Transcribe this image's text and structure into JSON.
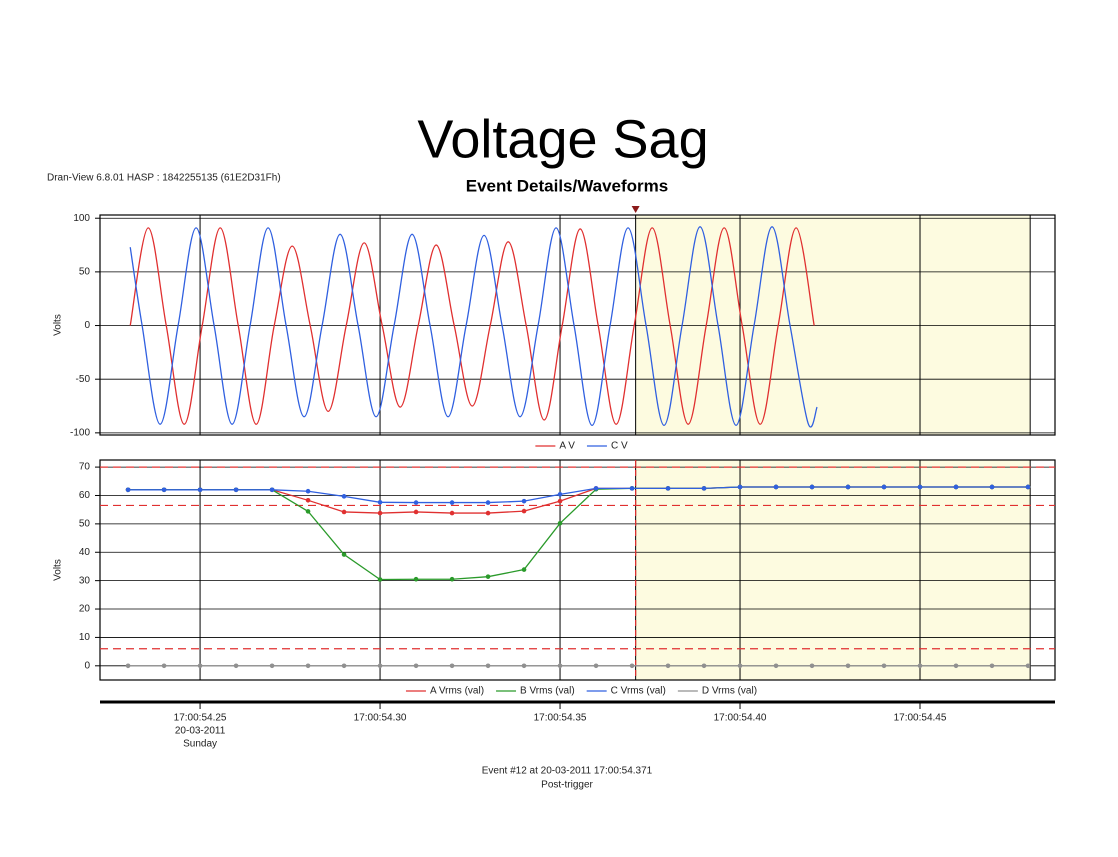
{
  "title": "Voltage Sag",
  "header": "Dran-View 6.8.01 HASP : 1842255135 (61E2D31Fh)",
  "subtitle": "Event Details/Waveforms",
  "footer": {
    "event": "Event #12 at 20-03-2011 17:00:54.371",
    "status": "Post-trigger"
  },
  "chart_data": [
    {
      "type": "line",
      "smooth": true,
      "ylabel": "Volts",
      "xlim": [
        54.2222,
        54.4875
      ],
      "ylim": [
        -102,
        103
      ],
      "yticks": [
        -100,
        -50,
        0,
        50,
        100
      ],
      "grid": true,
      "shaded_xrange": [
        54.371,
        54.4806
      ],
      "trigger_x": 54.371,
      "series": [
        {
          "name": "A V",
          "color": "#e03030",
          "x": [
            54.2306,
            54.2356,
            54.2406,
            54.2456,
            54.2506,
            54.2556,
            54.2606,
            54.2656,
            54.2706,
            54.2756,
            54.2806,
            54.2856,
            54.2906,
            54.2956,
            54.3006,
            54.3056,
            54.3106,
            54.3156,
            54.3206,
            54.3256,
            54.3306,
            54.3356,
            54.3406,
            54.3456,
            54.3506,
            54.3556,
            54.3606,
            54.3656,
            54.3706,
            54.3756,
            54.3806,
            54.3856,
            54.3906,
            54.3956,
            54.4006,
            54.4056,
            54.4106,
            54.4156,
            54.4206
          ],
          "values": [
            0,
            91,
            0,
            -92,
            0,
            91,
            0,
            -92,
            0,
            74,
            0,
            -80,
            0,
            77,
            0,
            -76,
            0,
            75,
            0,
            -75,
            0,
            78,
            0,
            -88,
            0,
            90,
            0,
            -92,
            0,
            91,
            0,
            -92,
            0,
            91,
            0,
            -92,
            0,
            91,
            0
          ]
        },
        {
          "name": "C V",
          "color": "#3060e0",
          "x": [
            54.2306,
            54.2339,
            54.2389,
            54.2439,
            54.2489,
            54.2539,
            54.2589,
            54.2639,
            54.2689,
            54.2739,
            54.2789,
            54.2839,
            54.2889,
            54.2939,
            54.2989,
            54.3039,
            54.3089,
            54.3139,
            54.3189,
            54.3239,
            54.3289,
            54.3339,
            54.3389,
            54.3439,
            54.3489,
            54.3539,
            54.3589,
            54.3639,
            54.3689,
            54.3739,
            54.3789,
            54.3839,
            54.3889,
            54.3939,
            54.3989,
            54.4039,
            54.4089,
            54.4139,
            54.4189,
            54.4214
          ],
          "values": [
            73,
            0,
            -92,
            0,
            91,
            0,
            -92,
            0,
            91,
            0,
            -85,
            0,
            85,
            0,
            -85,
            0,
            85,
            0,
            -85,
            0,
            84,
            0,
            -85,
            0,
            91,
            0,
            -93,
            0,
            91,
            0,
            -93,
            0,
            92,
            0,
            -93,
            0,
            92,
            0,
            -91,
            -76
          ]
        }
      ]
    },
    {
      "type": "line",
      "smooth": false,
      "markers": true,
      "ylabel": "Volts",
      "xlim": [
        54.2222,
        54.4875
      ],
      "ylim": [
        -5,
        72.5
      ],
      "yticks": [
        0,
        10,
        20,
        30,
        40,
        50,
        60,
        70
      ],
      "grid": true,
      "shaded_xrange": [
        54.371,
        54.4806
      ],
      "trigger_x": 54.371,
      "limit_lines": [
        70,
        56.5,
        6
      ],
      "limit_color": "#e03030",
      "xticks": [
        {
          "value": 54.25,
          "label": "17:00:54.25"
        },
        {
          "value": 54.3,
          "label": "17:00:54.30"
        },
        {
          "value": 54.35,
          "label": "17:00:54.35"
        },
        {
          "value": 54.4,
          "label": "17:00:54.40"
        },
        {
          "value": 54.45,
          "label": "17:00:54.45"
        }
      ],
      "xtick_date": "20-03-2011",
      "xtick_day": "Sunday",
      "x": [
        54.23,
        54.24,
        54.25,
        54.26,
        54.27,
        54.28,
        54.29,
        54.3,
        54.31,
        54.32,
        54.33,
        54.34,
        54.35,
        54.36,
        54.37,
        54.38,
        54.39,
        54.4,
        54.41,
        54.42,
        54.43,
        54.44,
        54.45,
        54.46,
        54.47,
        54.48
      ],
      "series": [
        {
          "name": "A Vrms (val)",
          "color": "#e03030",
          "values": [
            62,
            62,
            62,
            62,
            62,
            58.3,
            54.2,
            53.8,
            54.2,
            53.8,
            53.8,
            54.5,
            58,
            62.5,
            62.5,
            62.5,
            62.5,
            63,
            63,
            63,
            63,
            63,
            63,
            63,
            63,
            63
          ]
        },
        {
          "name": "B Vrms (val)",
          "color": "#2a9a2a",
          "values": [
            62,
            62,
            62,
            62,
            62,
            54.4,
            39.2,
            30.4,
            30.5,
            30.5,
            31.4,
            33.9,
            50.2,
            62.2,
            62.5,
            62.5,
            62.5,
            63,
            63,
            63,
            63,
            63,
            63,
            63,
            63,
            63
          ]
        },
        {
          "name": "C Vrms (val)",
          "color": "#3060e0",
          "values": [
            62,
            62,
            62,
            62,
            62,
            61.5,
            59.7,
            57.6,
            57.5,
            57.5,
            57.5,
            58,
            60.4,
            62.5,
            62.5,
            62.5,
            62.5,
            63,
            63,
            63,
            63,
            63,
            63,
            63,
            63,
            63
          ]
        },
        {
          "name": "D Vrms (val)",
          "color": "#909090",
          "values": [
            0,
            0,
            0,
            0,
            0,
            0,
            0,
            0,
            0,
            0,
            0,
            0,
            0,
            0,
            0,
            0,
            0,
            0,
            0,
            0,
            0,
            0,
            0,
            0,
            0,
            0
          ]
        }
      ]
    }
  ]
}
